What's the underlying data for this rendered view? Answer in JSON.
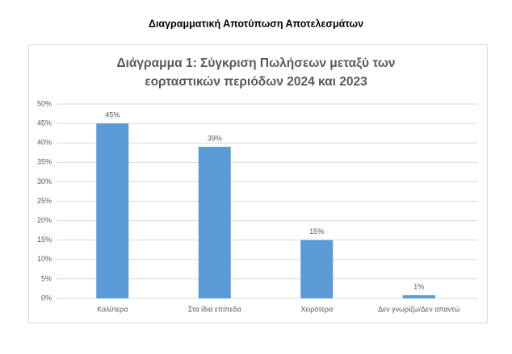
{
  "heading": "Διαγραμματική Αποτύπωση Αποτελεσμάτων",
  "chart_data": {
    "type": "bar",
    "title": [
      "Διάγραμμα 1: Σύγκριση Πωλήσεων μεταξύ των",
      "εορταστικών περιόδων 2024 και 2023"
    ],
    "categories": [
      "Καλύτερα",
      "Στα ίδια επίπεδα",
      "Χειρότερα",
      "Δεν γνωρίζω/Δεν απαντώ"
    ],
    "values": [
      45,
      39,
      15,
      0.8
    ],
    "value_labels": [
      "45%",
      "39%",
      "15%",
      "1%"
    ],
    "color": "#5b9bd5",
    "ylim": [
      0,
      50
    ],
    "yticks": [
      {
        "value": 0,
        "label": "0%"
      },
      {
        "value": 5,
        "label": "5%"
      },
      {
        "value": 10,
        "label": "10%"
      },
      {
        "value": 15,
        "label": "15%"
      },
      {
        "value": 20,
        "label": "20%"
      },
      {
        "value": 25,
        "label": "25%"
      },
      {
        "value": 30,
        "label": "30%"
      },
      {
        "value": 35,
        "label": "35%"
      },
      {
        "value": 40,
        "label": "40%"
      },
      {
        "value": 45,
        "label": "45%"
      },
      {
        "value": 50,
        "label": "50%"
      }
    ],
    "grid": true
  }
}
